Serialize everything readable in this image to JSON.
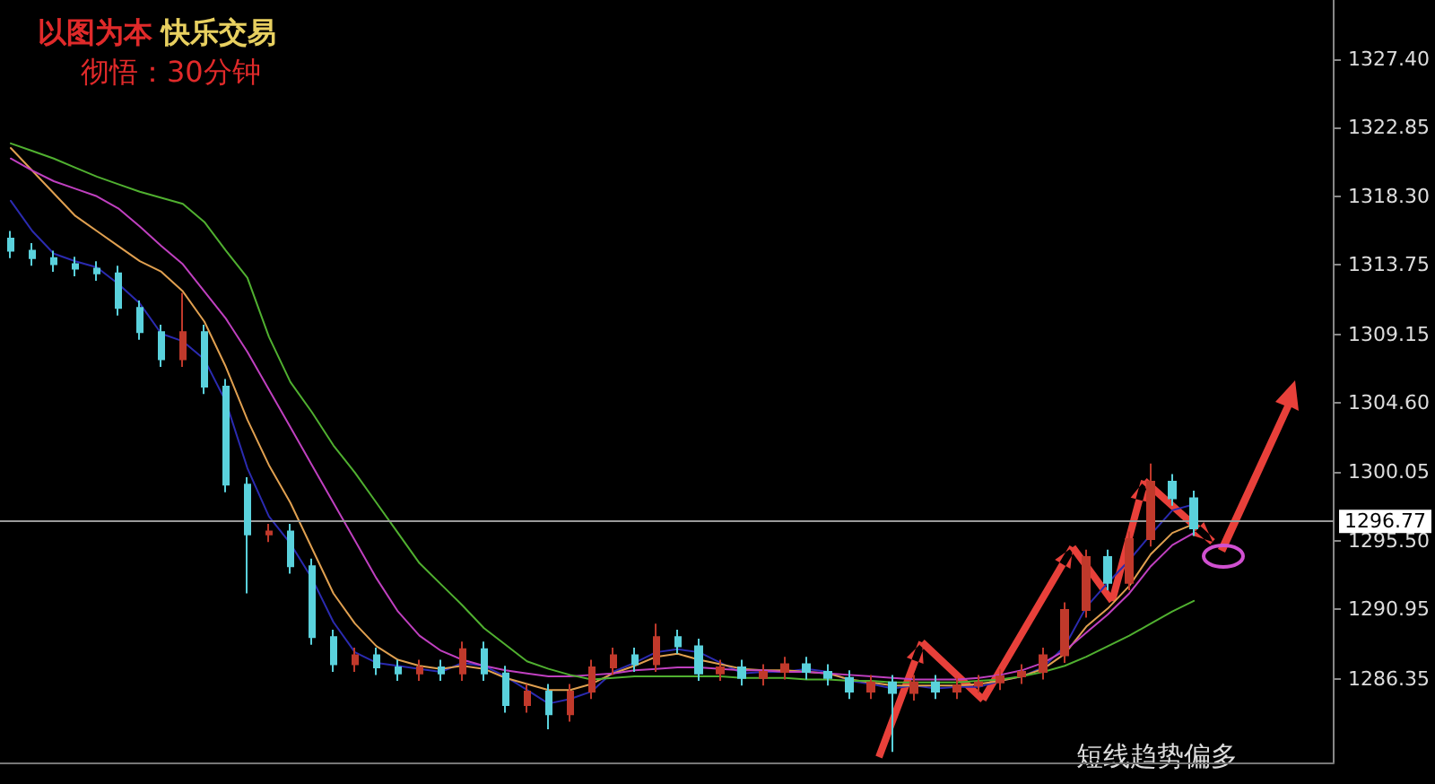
{
  "chart_data": {
    "type": "candlestick",
    "title": "以图为本 快乐交易",
    "subtitle": "彻悟：30分钟",
    "annotations": [
      "短线趋势偏多"
    ],
    "categories": [
      null,
      null,
      null,
      null,
      null,
      null,
      null,
      null,
      null,
      null,
      null,
      null,
      null,
      null,
      null,
      null,
      null,
      null,
      null,
      null,
      null,
      null,
      null,
      null,
      null,
      null,
      null,
      null,
      null,
      null,
      null,
      null,
      null,
      null,
      null,
      null,
      null,
      null,
      null,
      null,
      null,
      null,
      null,
      null,
      null,
      null,
      null,
      null,
      null,
      null,
      null,
      null,
      null,
      null,
      null,
      null
    ],
    "ohlc": [
      [
        1315.5,
        1316.0,
        1314.2,
        1314.7
      ],
      [
        1314.7,
        1315.2,
        1313.7,
        1314.2
      ],
      [
        1314.2,
        1314.7,
        1313.3,
        1313.8
      ],
      [
        1313.8,
        1314.3,
        1313.0,
        1313.5
      ],
      [
        1313.5,
        1314.0,
        1312.7,
        1313.2
      ],
      [
        1313.2,
        1313.7,
        1310.4,
        1310.9
      ],
      [
        1310.9,
        1311.4,
        1308.8,
        1309.3
      ],
      [
        1309.3,
        1309.8,
        1307.0,
        1307.5
      ],
      [
        1307.5,
        1311.9,
        1307.0,
        1309.3
      ],
      [
        1309.3,
        1309.8,
        1305.2,
        1305.7
      ],
      [
        1305.7,
        1306.2,
        1298.7,
        1299.2
      ],
      [
        1299.2,
        1299.7,
        1292.0,
        1295.9
      ],
      [
        1295.9,
        1296.6,
        1295.4,
        1296.1
      ],
      [
        1296.1,
        1296.6,
        1293.3,
        1293.8
      ],
      [
        1293.8,
        1294.3,
        1288.6,
        1289.1
      ],
      [
        1289.1,
        1289.6,
        1286.8,
        1287.3
      ],
      [
        1287.3,
        1288.4,
        1286.8,
        1287.9
      ],
      [
        1287.9,
        1288.4,
        1286.6,
        1287.1
      ],
      [
        1287.1,
        1287.6,
        1286.2,
        1286.7
      ],
      [
        1286.7,
        1287.6,
        1286.2,
        1287.1
      ],
      [
        1287.1,
        1287.6,
        1286.2,
        1286.7
      ],
      [
        1286.7,
        1288.8,
        1286.2,
        1288.3
      ],
      [
        1288.3,
        1288.8,
        1286.2,
        1286.7
      ],
      [
        1286.7,
        1287.2,
        1284.1,
        1284.6
      ],
      [
        1284.6,
        1286.0,
        1284.1,
        1285.5
      ],
      [
        1285.5,
        1286.0,
        1283.0,
        1284.0
      ],
      [
        1284.0,
        1286.0,
        1283.5,
        1285.5
      ],
      [
        1285.5,
        1287.6,
        1285.0,
        1287.1
      ],
      [
        1287.1,
        1288.4,
        1286.6,
        1287.9
      ],
      [
        1287.9,
        1288.4,
        1286.8,
        1287.3
      ],
      [
        1287.3,
        1290.0,
        1286.8,
        1289.1
      ],
      [
        1289.1,
        1289.6,
        1288.0,
        1288.5
      ],
      [
        1288.5,
        1289.0,
        1286.2,
        1286.7
      ],
      [
        1286.7,
        1287.6,
        1286.2,
        1287.1
      ],
      [
        1287.1,
        1287.6,
        1285.9,
        1286.4
      ],
      [
        1286.4,
        1287.3,
        1285.9,
        1286.8
      ],
      [
        1286.8,
        1287.8,
        1286.3,
        1287.3
      ],
      [
        1287.3,
        1287.8,
        1286.3,
        1286.8
      ],
      [
        1286.8,
        1287.3,
        1285.9,
        1286.4
      ],
      [
        1286.4,
        1286.9,
        1285.0,
        1285.5
      ],
      [
        1285.5,
        1286.6,
        1285.0,
        1286.1
      ],
      [
        1286.1,
        1286.6,
        1281.5,
        1285.4
      ],
      [
        1285.4,
        1286.6,
        1284.9,
        1286.1
      ],
      [
        1286.1,
        1286.6,
        1285.0,
        1285.5
      ],
      [
        1285.5,
        1286.4,
        1285.0,
        1285.9
      ],
      [
        1285.9,
        1286.6,
        1285.4,
        1286.1
      ],
      [
        1286.1,
        1287.0,
        1285.6,
        1286.5
      ],
      [
        1286.5,
        1287.3,
        1286.0,
        1286.8
      ],
      [
        1286.8,
        1288.4,
        1286.3,
        1287.9
      ],
      [
        1287.9,
        1291.4,
        1287.4,
        1290.9
      ],
      [
        1290.9,
        1294.9,
        1290.4,
        1294.4
      ],
      [
        1294.4,
        1294.9,
        1292.2,
        1292.7
      ],
      [
        1292.7,
        1296.1,
        1292.2,
        1295.6
      ],
      [
        1295.6,
        1300.6,
        1295.1,
        1299.4
      ],
      [
        1299.4,
        1299.9,
        1297.8,
        1298.3
      ],
      [
        1298.3,
        1298.8,
        1295.8,
        1296.3
      ]
    ],
    "colors": [
      "#5ad1dc",
      "#5ad1dc",
      "#5ad1dc",
      "#5ad1dc",
      "#5ad1dc",
      "#5ad1dc",
      "#5ad1dc",
      "#5ad1dc",
      "#c0392b",
      "#5ad1dc",
      "#5ad1dc",
      "#5ad1dc",
      "#c0392b",
      "#5ad1dc",
      "#5ad1dc",
      "#5ad1dc",
      "#c0392b",
      "#5ad1dc",
      "#5ad1dc",
      "#c0392b",
      "#5ad1dc",
      "#c0392b",
      "#5ad1dc",
      "#5ad1dc",
      "#c0392b",
      "#5ad1dc",
      "#c0392b",
      "#c0392b",
      "#c0392b",
      "#5ad1dc",
      "#c0392b",
      "#5ad1dc",
      "#5ad1dc",
      "#c0392b",
      "#5ad1dc",
      "#c0392b",
      "#c0392b",
      "#5ad1dc",
      "#5ad1dc",
      "#5ad1dc",
      "#c0392b",
      "#5ad1dc",
      "#c0392b",
      "#5ad1dc",
      "#c0392b",
      "#c0392b",
      "#c0392b",
      "#c0392b",
      "#c0392b",
      "#c0392b",
      "#c0392b",
      "#5ad1dc",
      "#c0392b",
      "#c0392b",
      "#5ad1dc",
      "#5ad1dc"
    ],
    "series": [
      {
        "type": "line",
        "color": "#2b2bb0",
        "values": [
          1318.0,
          1316.0,
          1314.5,
          1314.0,
          1313.6,
          1312.5,
          1311.2,
          1309.2,
          1308.7,
          1307.5,
          1304.7,
          1300.3,
          1297.1,
          1295.3,
          1293.0,
          1290.1,
          1288.1,
          1287.4,
          1287.2,
          1287.0,
          1286.8,
          1287.4,
          1287.2,
          1286.5,
          1285.6,
          1284.7,
          1285.0,
          1285.5,
          1286.8,
          1287.4,
          1288.1,
          1288.3,
          1288.1,
          1287.4,
          1286.7,
          1286.8,
          1286.8,
          1287.0,
          1286.8,
          1286.2,
          1286.0,
          1285.7,
          1285.9,
          1285.7,
          1285.8,
          1285.8,
          1286.2,
          1286.5,
          1287.1,
          1288.5,
          1291.1,
          1292.7,
          1294.2,
          1295.9,
          1297.5,
          1297.9
        ]
      },
      {
        "type": "line",
        "color": "#e0a050",
        "values": [
          1321.5,
          1320.0,
          1318.5,
          1317.0,
          1316.0,
          1315.0,
          1314.0,
          1313.3,
          1312.0,
          1310.0,
          1307.0,
          1303.5,
          1300.5,
          1298.0,
          1295.0,
          1292.0,
          1290.0,
          1288.5,
          1287.6,
          1287.2,
          1287.0,
          1287.2,
          1287.0,
          1286.4,
          1286.0,
          1285.6,
          1285.6,
          1286.0,
          1286.7,
          1287.2,
          1287.8,
          1288.0,
          1287.6,
          1287.3,
          1287.0,
          1286.9,
          1286.9,
          1286.8,
          1286.7,
          1286.3,
          1286.1,
          1285.9,
          1285.9,
          1285.9,
          1285.9,
          1286.0,
          1286.2,
          1286.5,
          1287.0,
          1288.0,
          1289.8,
          1291.0,
          1292.5,
          1294.6,
          1296.0,
          1296.6
        ]
      },
      {
        "type": "line",
        "color": "#c040c0",
        "values": [
          1320.8,
          1320.0,
          1319.3,
          1318.8,
          1318.3,
          1317.5,
          1316.3,
          1315.0,
          1313.8,
          1312.0,
          1310.2,
          1308.0,
          1305.5,
          1303.0,
          1300.5,
          1298.0,
          1295.5,
          1293.0,
          1290.8,
          1289.2,
          1288.2,
          1287.6,
          1287.2,
          1286.9,
          1286.7,
          1286.5,
          1286.5,
          1286.6,
          1286.7,
          1286.9,
          1287.0,
          1287.1,
          1287.1,
          1287.0,
          1286.9,
          1286.9,
          1286.8,
          1286.8,
          1286.7,
          1286.6,
          1286.5,
          1286.4,
          1286.3,
          1286.3,
          1286.3,
          1286.4,
          1286.6,
          1286.9,
          1287.4,
          1288.2,
          1289.4,
          1290.6,
          1292.0,
          1293.8,
          1295.2,
          1296.0
        ]
      },
      {
        "type": "line",
        "color": "#50b030",
        "values": [
          1321.8,
          1321.3,
          1320.8,
          1320.2,
          1319.6,
          1319.1,
          1318.6,
          1318.2,
          1317.8,
          1316.6,
          1314.7,
          1312.9,
          1309.0,
          1306.0,
          1304.0,
          1301.8,
          1300.0,
          1298.0,
          1296.0,
          1294.0,
          1292.6,
          1291.2,
          1289.7,
          1288.6,
          1287.5,
          1287.0,
          1286.6,
          1286.3,
          1286.4,
          1286.5,
          1286.5,
          1286.5,
          1286.5,
          1286.5,
          1286.4,
          1286.4,
          1286.4,
          1286.3,
          1286.3,
          1286.2,
          1286.2,
          1286.1,
          1286.1,
          1286.1,
          1286.1,
          1286.2,
          1286.3,
          1286.5,
          1286.8,
          1287.2,
          1287.8,
          1288.5,
          1289.2,
          1290.0,
          1290.8,
          1291.5
        ]
      }
    ],
    "ylim": [
      1280.8,
      1331.3
    ],
    "yticks": [
      {
        "value": 1327.4,
        "label": "1327.40"
      },
      1322.85,
      {
        "value": 1318.3,
        "label": "1318.30"
      },
      1313.75,
      1309.15,
      {
        "value": 1304.6,
        "label": "1304.60"
      },
      1300.05,
      {
        "value": 1295.5,
        "label": "1295.50"
      },
      1290.95,
      1286.35
    ],
    "tick_labels": "y",
    "ref_lines": [
      {
        "axis": "y",
        "value": 1296.77,
        "label": "1296.77",
        "color": "#9a9a9a"
      }
    ],
    "grid": false,
    "marker": "none",
    "line_style": "solid"
  }
}
